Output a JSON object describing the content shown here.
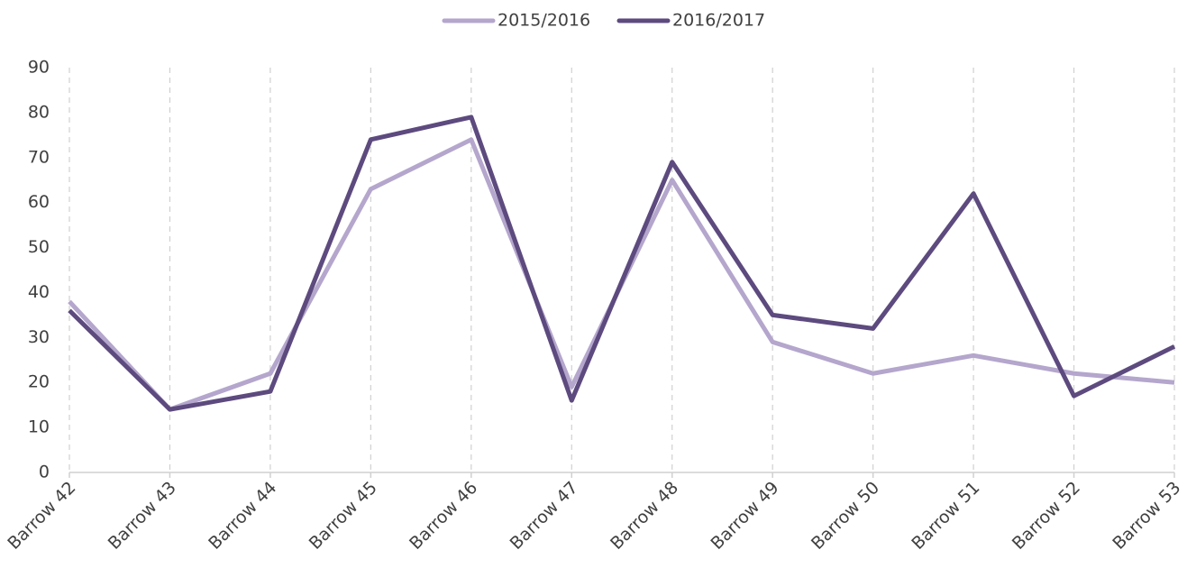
{
  "chart_data": {
    "type": "line",
    "categories": [
      "Barrow 42",
      "Barrow 43",
      "Barrow 44",
      "Barrow 45",
      "Barrow 46",
      "Barrow 47",
      "Barrow 48",
      "Barrow 49",
      "Barrow 50",
      "Barrow 51",
      "Barrow 52",
      "Barrow 53"
    ],
    "series": [
      {
        "name": "2015/2016",
        "color": "#b4a6cc",
        "values": [
          38,
          14,
          22,
          63,
          74,
          19,
          65,
          29,
          22,
          26,
          22,
          20
        ]
      },
      {
        "name": "2016/2017",
        "color": "#5d4a7e",
        "values": [
          36,
          14,
          18,
          74,
          79,
          16,
          69,
          35,
          32,
          62,
          17,
          28
        ]
      }
    ],
    "ylim": [
      0,
      90
    ],
    "yticks": [
      0,
      10,
      20,
      30,
      40,
      50,
      60,
      70,
      80,
      90
    ],
    "grid": true,
    "legend": "top"
  }
}
